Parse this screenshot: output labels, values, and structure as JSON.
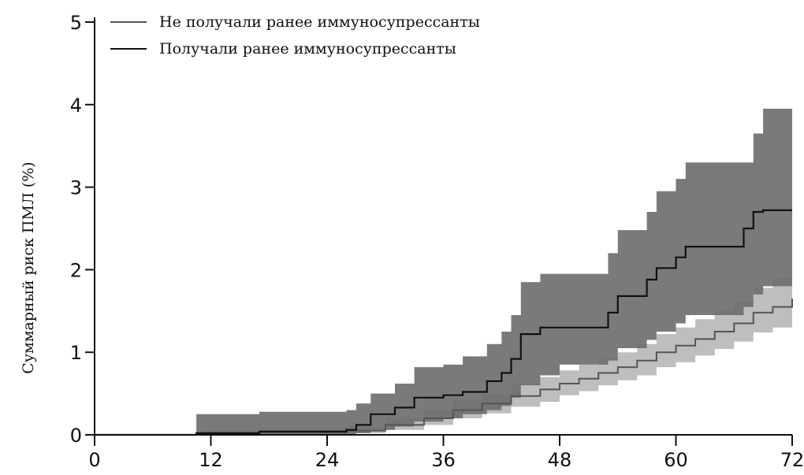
{
  "chart_data": {
    "type": "line",
    "title": "",
    "xlabel": "",
    "ylabel": "Суммарный риск ПМЛ (%)",
    "xlim": [
      0,
      72
    ],
    "ylim": [
      0,
      5
    ],
    "x_ticks": [
      0,
      12,
      24,
      36,
      48,
      60,
      72
    ],
    "y_ticks": [
      0,
      1,
      2,
      3,
      4,
      5
    ],
    "grid": false,
    "legend_position": "top-left",
    "series": [
      {
        "name": "Не получали ранее иммуносупрессанты",
        "color": "#555555",
        "band_color": "#b3b3b3",
        "step": true,
        "x": [
          0,
          11,
          17,
          26,
          30,
          34,
          37,
          40,
          43,
          46,
          48,
          50,
          52,
          54,
          56,
          58,
          60,
          62,
          64,
          66,
          68,
          70,
          72
        ],
        "y": [
          0,
          0.02,
          0.03,
          0.05,
          0.12,
          0.2,
          0.3,
          0.38,
          0.47,
          0.55,
          0.62,
          0.68,
          0.75,
          0.82,
          0.9,
          1.0,
          1.08,
          1.16,
          1.25,
          1.35,
          1.48,
          1.55,
          1.65
        ],
        "lower": [
          0,
          0.0,
          0.01,
          0.02,
          0.06,
          0.12,
          0.2,
          0.26,
          0.34,
          0.4,
          0.48,
          0.53,
          0.6,
          0.66,
          0.72,
          0.82,
          0.88,
          0.96,
          1.04,
          1.13,
          1.24,
          1.3,
          1.38
        ],
        "upper": [
          0,
          0.06,
          0.08,
          0.1,
          0.2,
          0.3,
          0.42,
          0.5,
          0.62,
          0.7,
          0.78,
          0.85,
          0.92,
          1.0,
          1.1,
          1.22,
          1.3,
          1.4,
          1.5,
          1.62,
          1.78,
          1.9,
          2.1
        ]
      },
      {
        "name": "Получали ранее иммуносупрессанты",
        "color": "#111111",
        "band_color": "#6b6b6b",
        "step": true,
        "x": [
          0,
          10.5,
          17,
          26,
          27,
          28.5,
          31,
          33,
          36,
          38,
          40.5,
          42,
          43,
          44,
          46,
          48,
          53,
          54,
          57,
          58,
          60,
          61,
          67,
          68,
          69,
          72
        ],
        "y": [
          0,
          0.02,
          0.04,
          0.06,
          0.12,
          0.25,
          0.33,
          0.45,
          0.48,
          0.52,
          0.65,
          0.75,
          0.92,
          1.22,
          1.3,
          1.3,
          1.48,
          1.68,
          1.88,
          2.02,
          2.15,
          2.28,
          2.5,
          2.7,
          2.72,
          2.72
        ],
        "lower": [
          0,
          0.0,
          0.0,
          0.0,
          0.02,
          0.06,
          0.1,
          0.16,
          0.2,
          0.25,
          0.3,
          0.35,
          0.45,
          0.6,
          0.72,
          0.85,
          0.9,
          1.05,
          1.15,
          1.25,
          1.35,
          1.45,
          1.55,
          1.7,
          1.8,
          1.9
        ],
        "upper": [
          0,
          0.25,
          0.28,
          0.3,
          0.38,
          0.5,
          0.62,
          0.82,
          0.85,
          0.95,
          1.1,
          1.25,
          1.45,
          1.85,
          1.95,
          1.95,
          2.2,
          2.48,
          2.7,
          2.95,
          3.1,
          3.3,
          3.3,
          3.65,
          3.95,
          3.95
        ]
      }
    ]
  }
}
